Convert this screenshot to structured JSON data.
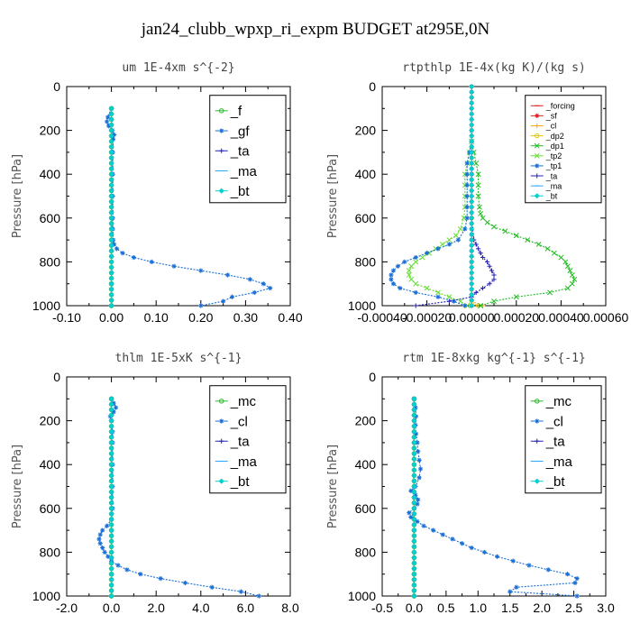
{
  "figure": {
    "title": "jan24_clubb_wpxp_ri_expm  BUDGET at295E,0N"
  },
  "colors": {
    "green": "#22bb22",
    "blue": "#1a6fd6",
    "navy": "#2222bb",
    "cyan": "#00d0d0",
    "red": "#e02020",
    "orange": "#ffa500",
    "yellow": "#e6c800",
    "ltgreen": "#66dd33",
    "ltblue": "#2aa8ff"
  },
  "chart_data": [
    {
      "type": "line",
      "title": "um  1E-4xm s^{-2}",
      "xlabel": "",
      "ylabel": "Pressure [hPa]",
      "xlim": [
        -0.1,
        0.4
      ],
      "ylim": [
        1000,
        0
      ],
      "xticks": [
        -0.1,
        0.0,
        0.1,
        0.2,
        0.3,
        0.4
      ],
      "xtick_labels": [
        "-0.10",
        "0.00",
        "0.10",
        "0.20",
        "0.30",
        "0.40"
      ],
      "yticks": [
        0,
        200,
        400,
        600,
        800,
        1000
      ],
      "ytick_labels": [
        "0",
        "200",
        "400",
        "600",
        "800",
        "1000"
      ],
      "legend": {
        "placement": "top-right",
        "font": 15,
        "box_x0": 0.64,
        "box_y0": 0.04,
        "box_x1": 0.98,
        "box_y1": 0.53
      },
      "series": [
        {
          "name": "_f",
          "color": "green",
          "marker": "o",
          "y": [
            100,
            300,
            500,
            700,
            900,
            1000
          ],
          "x": [
            0,
            0,
            0,
            0,
            0,
            0
          ]
        },
        {
          "name": "_gf",
          "color": "blue",
          "marker": "*",
          "y": [
            100,
            140,
            160,
            180,
            200,
            220,
            240,
            300,
            400,
            500,
            600,
            650,
            700,
            720,
            740,
            760,
            780,
            800,
            820,
            840,
            860,
            880,
            900,
            920,
            940,
            960,
            980,
            1000
          ],
          "x": [
            0.0,
            -0.008,
            -0.01,
            -0.006,
            0.002,
            0.006,
            0.004,
            0.003,
            0.003,
            0.003,
            0.003,
            0.003,
            0.004,
            0.006,
            0.012,
            0.025,
            0.05,
            0.09,
            0.14,
            0.2,
            0.26,
            0.31,
            0.34,
            0.355,
            0.32,
            0.27,
            0.25,
            0.2
          ]
        },
        {
          "name": "_ta",
          "color": "navy",
          "marker": "+",
          "y": [
            100,
            300,
            500,
            700,
            900,
            1000
          ],
          "x": [
            0,
            0,
            0,
            0,
            0,
            0
          ]
        },
        {
          "name": "_ma",
          "color": "ltblue",
          "marker": "-",
          "y": [
            100,
            300,
            500,
            700,
            900,
            1000
          ],
          "x": [
            0,
            0,
            0,
            0,
            0,
            0
          ]
        },
        {
          "name": "_bt",
          "color": "cyan",
          "marker": "d",
          "y": [
            100,
            300,
            500,
            700,
            900,
            1000
          ],
          "x": [
            0,
            0,
            0,
            0,
            0,
            0
          ]
        }
      ]
    },
    {
      "type": "line",
      "title": "rtpthlp  1E-4x(kg K)/(kg s)",
      "xlabel": "",
      "ylabel": "Pressure [hPa]",
      "xlim": [
        -0.0004,
        0.0006
      ],
      "ylim": [
        1000,
        0
      ],
      "xticks": [
        -0.0004,
        -0.0002,
        0.0,
        0.0002,
        0.0004,
        0.0006
      ],
      "xtick_labels": [
        "-0.00040",
        "-0.00020",
        "0.00000",
        "0.00020",
        "0.00040",
        "0.00060"
      ],
      "yticks": [
        0,
        200,
        400,
        600,
        800,
        1000
      ],
      "ytick_labels": [
        "0",
        "200",
        "400",
        "600",
        "800",
        "1000"
      ],
      "legend": {
        "placement": "top-right",
        "font": 9,
        "box_x0": 0.64,
        "box_y0": 0.04,
        "box_x1": 0.98,
        "box_y1": 0.53
      },
      "series": [
        {
          "name": "_forcing",
          "color": "red",
          "marker": "-",
          "y": [
            0,
            1000
          ],
          "x": [
            0,
            0
          ]
        },
        {
          "name": "_sf",
          "color": "red",
          "marker": "*",
          "y": [
            0,
            200,
            400,
            600,
            800,
            1000
          ],
          "x": [
            0,
            0,
            0,
            0,
            0,
            0
          ]
        },
        {
          "name": "_cl",
          "color": "orange",
          "marker": "+",
          "y": [
            980,
            1000
          ],
          "x": [
            0.0,
            5e-05
          ]
        },
        {
          "name": "_dp2",
          "color": "yellow",
          "marker": "o",
          "y": [
            990,
            1000
          ],
          "x": [
            0.0,
            3e-05
          ]
        },
        {
          "name": "_dp1",
          "color": "green",
          "marker": "x",
          "y": [
            250,
            300,
            350,
            400,
            450,
            500,
            550,
            580,
            600,
            620,
            640,
            660,
            680,
            700,
            720,
            740,
            760,
            780,
            800,
            820,
            840,
            860,
            880,
            900,
            920,
            940,
            960,
            980,
            1000
          ],
          "x": [
            0.0,
            1e-05,
            2e-05,
            3e-05,
            3e-05,
            3e-05,
            3.5e-05,
            4e-05,
            5e-05,
            7e-05,
            0.0001,
            0.00015,
            0.0002,
            0.00025,
            0.0003,
            0.00034,
            0.00037,
            0.0004,
            0.00042,
            0.00043,
            0.00044,
            0.00045,
            0.00046,
            0.00045,
            0.00043,
            0.00035,
            0.0002,
            0.0001,
            4e-05
          ]
        },
        {
          "name": "_tp2",
          "color": "ltgreen",
          "marker": "x",
          "y": [
            250,
            300,
            350,
            400,
            450,
            500,
            550,
            600,
            650,
            680,
            700,
            720,
            740,
            760,
            780,
            800,
            820,
            840,
            860,
            880,
            900,
            920,
            940,
            960,
            980,
            1000
          ],
          "x": [
            0.0,
            -1e-05,
            -2e-05,
            -3e-05,
            -3e-05,
            -3e-05,
            -3e-05,
            -3.5e-05,
            -5e-05,
            -7e-05,
            -0.0001,
            -0.00013,
            -0.00016,
            -0.00019,
            -0.00022,
            -0.00025,
            -0.00027,
            -0.00028,
            -0.00028,
            -0.00027,
            -0.00025,
            -0.0002,
            -0.00015,
            -0.0001,
            -5e-05,
            -2e-05
          ]
        },
        {
          "name": "_tp1",
          "color": "blue",
          "marker": "*",
          "y": [
            250,
            300,
            350,
            400,
            450,
            500,
            550,
            600,
            650,
            700,
            720,
            740,
            760,
            780,
            800,
            820,
            840,
            860,
            880,
            900,
            920,
            940,
            960,
            980,
            1000
          ],
          "x": [
            0.0,
            -1e-05,
            -2e-05,
            -2e-05,
            -2e-05,
            -2e-05,
            -2e-05,
            -2e-05,
            -3e-05,
            -6e-05,
            -0.0001,
            -0.00015,
            -0.0002,
            -0.00025,
            -0.0003,
            -0.00033,
            -0.00035,
            -0.00036,
            -0.00036,
            -0.00035,
            -0.00032,
            -0.00025,
            -0.00015,
            -8e-05,
            -3e-05
          ]
        },
        {
          "name": "_ta",
          "color": "navy",
          "marker": "+",
          "y": [
            250,
            400,
            600,
            700,
            720,
            740,
            760,
            780,
            800,
            820,
            840,
            860,
            880,
            900,
            920,
            940,
            960,
            980,
            1000
          ],
          "x": [
            0.0,
            0.0,
            0.0,
            1e-05,
            2e-05,
            3e-05,
            4e-05,
            5e-05,
            7e-05,
            8e-05,
            9e-05,
            0.0001,
            0.0001,
            8e-05,
            5e-05,
            2e-05,
            0.0,
            -0.0001,
            -0.00025
          ]
        },
        {
          "name": "_ma",
          "color": "ltblue",
          "marker": "-",
          "y": [
            0,
            500,
            1000
          ],
          "x": [
            0,
            0,
            0
          ]
        },
        {
          "name": "_bt",
          "color": "cyan",
          "marker": "d",
          "y": [
            0,
            500,
            1000
          ],
          "x": [
            0,
            0,
            0
          ]
        }
      ]
    },
    {
      "type": "line",
      "title": "thlm  1E-5xK s^{-1}",
      "xlabel": "",
      "ylabel": "Pressure [hPa]",
      "xlim": [
        -2.0,
        8.0
      ],
      "ylim": [
        1000,
        0
      ],
      "xticks": [
        -2.0,
        0.0,
        2.0,
        4.0,
        6.0,
        8.0
      ],
      "xtick_labels": [
        "-2.0",
        "0.0",
        "2.0",
        "4.0",
        "6.0",
        "8.0"
      ],
      "yticks": [
        0,
        200,
        400,
        600,
        800,
        1000
      ],
      "ytick_labels": [
        "0",
        "200",
        "400",
        "600",
        "800",
        "1000"
      ],
      "legend": {
        "placement": "top-right",
        "font": 15,
        "box_x0": 0.64,
        "box_y0": 0.04,
        "box_x1": 0.98,
        "box_y1": 0.53
      },
      "series": [
        {
          "name": "_mc",
          "color": "green",
          "marker": "o",
          "y": [
            100,
            300,
            500,
            700,
            900,
            1000
          ],
          "x": [
            0,
            0,
            0,
            0,
            0,
            0
          ]
        },
        {
          "name": "_cl",
          "color": "blue",
          "marker": "*",
          "y": [
            100,
            120,
            140,
            160,
            180,
            200,
            250,
            300,
            400,
            500,
            600,
            650,
            680,
            700,
            720,
            740,
            760,
            780,
            800,
            820,
            840,
            860,
            880,
            900,
            920,
            940,
            960,
            980,
            1000
          ],
          "x": [
            0.0,
            0.1,
            0.2,
            0.1,
            -0.05,
            0.0,
            0.05,
            0.05,
            0.05,
            0.05,
            0.05,
            0.0,
            -0.2,
            -0.4,
            -0.5,
            -0.55,
            -0.5,
            -0.4,
            -0.3,
            -0.15,
            0.0,
            0.3,
            0.7,
            1.3,
            2.2,
            3.3,
            4.5,
            5.8,
            6.6
          ]
        },
        {
          "name": "_ta",
          "color": "navy",
          "marker": "+",
          "y": [
            100,
            300,
            500,
            700,
            900,
            1000
          ],
          "x": [
            0,
            0,
            0,
            0,
            0,
            0
          ]
        },
        {
          "name": "_ma",
          "color": "ltblue",
          "marker": "-",
          "y": [
            100,
            300,
            500,
            700,
            900,
            1000
          ],
          "x": [
            0,
            0,
            0,
            0,
            0,
            0
          ]
        },
        {
          "name": "_bt",
          "color": "cyan",
          "marker": "d",
          "y": [
            100,
            300,
            500,
            700,
            900,
            1000
          ],
          "x": [
            0,
            0,
            0,
            0,
            0,
            0
          ]
        }
      ]
    },
    {
      "type": "line",
      "title": "rtm  1E-8xkg kg^{-1} s^{-1}",
      "xlabel": "",
      "ylabel": "Pressure [hPa]",
      "xlim": [
        -0.5,
        3.0
      ],
      "ylim": [
        1000,
        0
      ],
      "xticks": [
        -0.5,
        0.0,
        0.5,
        1.0,
        1.5,
        2.0,
        2.5,
        3.0
      ],
      "xtick_labels": [
        "-0.5",
        "0.0",
        "0.5",
        "1.0",
        "1.5",
        "2.0",
        "2.5",
        "3.0"
      ],
      "yticks": [
        0,
        200,
        400,
        600,
        800,
        1000
      ],
      "ytick_labels": [
        "0",
        "200",
        "400",
        "600",
        "800",
        "1000"
      ],
      "legend": {
        "placement": "top-right",
        "font": 15,
        "box_x0": 0.64,
        "box_y0": 0.04,
        "box_x1": 0.98,
        "box_y1": 0.53
      },
      "series": [
        {
          "name": "_mc",
          "color": "green",
          "marker": "o",
          "y": [
            100,
            300,
            500,
            700,
            900,
            1000
          ],
          "x": [
            0,
            0,
            0,
            0,
            0,
            0
          ]
        },
        {
          "name": "_cl",
          "color": "blue",
          "marker": "*",
          "y": [
            100,
            140,
            180,
            220,
            260,
            300,
            340,
            380,
            420,
            460,
            500,
            520,
            540,
            560,
            580,
            600,
            620,
            640,
            660,
            680,
            700,
            720,
            740,
            760,
            780,
            800,
            820,
            840,
            860,
            880,
            900,
            920,
            940,
            960,
            980,
            1000
          ],
          "x": [
            0.0,
            0.02,
            0.03,
            0.02,
            0.03,
            0.05,
            0.06,
            0.08,
            0.1,
            0.08,
            0.02,
            -0.05,
            0.02,
            0.06,
            0.05,
            0.0,
            -0.08,
            -0.05,
            0.05,
            0.15,
            0.3,
            0.45,
            0.6,
            0.75,
            0.9,
            1.1,
            1.3,
            1.55,
            1.8,
            2.1,
            2.4,
            2.55,
            2.52,
            1.6,
            1.5,
            2.55
          ]
        },
        {
          "name": "_ta",
          "color": "navy",
          "marker": "+",
          "y": [
            100,
            300,
            500,
            700,
            900,
            1000
          ],
          "x": [
            0,
            0,
            0,
            0,
            0,
            0
          ]
        },
        {
          "name": "_ma",
          "color": "ltblue",
          "marker": "-",
          "y": [
            100,
            300,
            500,
            700,
            900,
            1000
          ],
          "x": [
            0,
            0,
            0,
            0,
            0,
            0
          ]
        },
        {
          "name": "_bt",
          "color": "cyan",
          "marker": "d",
          "y": [
            100,
            300,
            500,
            700,
            900,
            1000
          ],
          "x": [
            0,
            0,
            0,
            0,
            0,
            0
          ]
        }
      ]
    }
  ]
}
